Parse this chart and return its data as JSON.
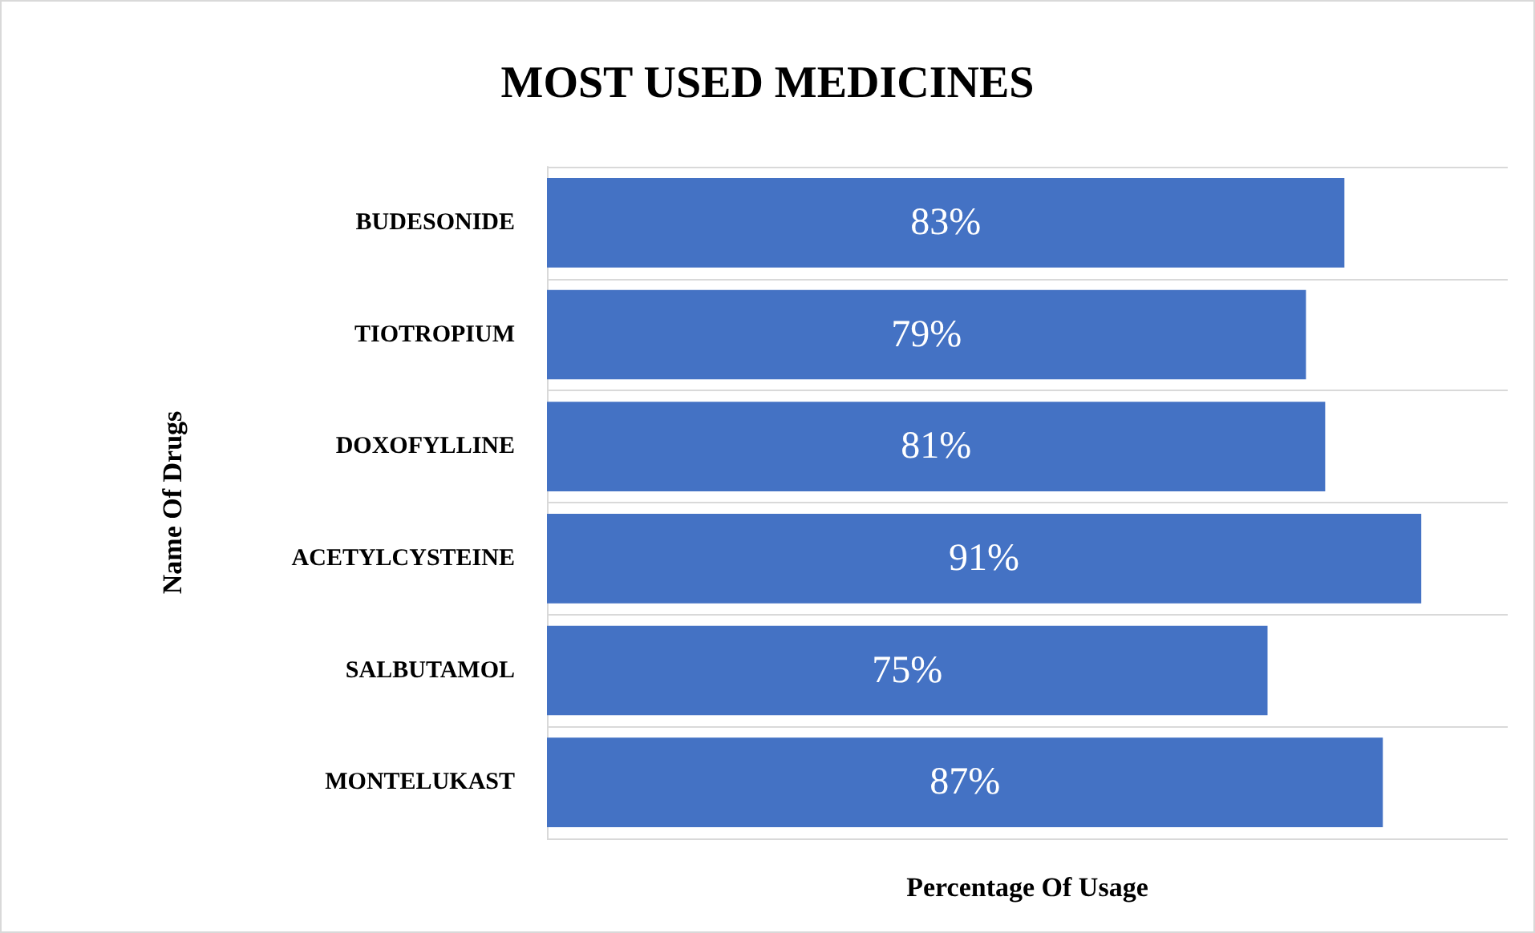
{
  "chart_data": {
    "type": "bar",
    "orientation": "horizontal",
    "title": "MOST USED MEDICINES",
    "xlabel": "Percentage Of Usage",
    "ylabel": "Name Of Drugs",
    "categories": [
      "BUDESONIDE",
      "TIOTROPIUM",
      "DOXOFYLLINE",
      "ACETYLCYSTEINE",
      "SALBUTAMOL",
      "MONTELUKAST"
    ],
    "values": [
      83,
      79,
      81,
      91,
      75,
      87
    ],
    "value_labels": [
      "83%",
      "79%",
      "81%",
      "91%",
      "75%",
      "87%"
    ],
    "color": "#4472c4",
    "xlim": [
      0,
      100
    ],
    "tick_labels": "y",
    "grid": "y"
  }
}
